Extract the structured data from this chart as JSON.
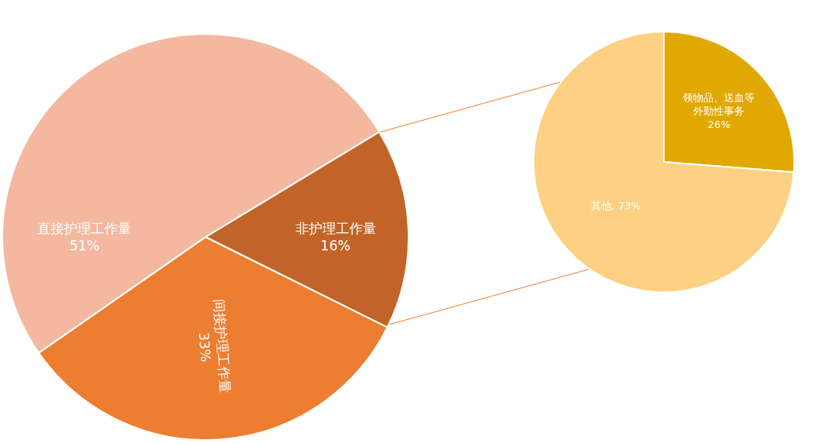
{
  "chart_data": [
    {
      "type": "pie",
      "categories": [
        "非护理工作量",
        "间接护理工作量",
        "直接护理工作量"
      ],
      "values": [
        16,
        33,
        51
      ],
      "colors": [
        "#c26428",
        "#ed7d31",
        "#f4b8a0"
      ],
      "value_labels": [
        "16%",
        "33%",
        "51%"
      ]
    },
    {
      "type": "pie",
      "categories": [
        "领物品、送血等外勤性事务",
        "其他"
      ],
      "values": [
        26,
        73
      ],
      "colors": [
        "#e0a800",
        "#fdd083"
      ],
      "value_labels": [
        "26%",
        "73%"
      ]
    }
  ]
}
